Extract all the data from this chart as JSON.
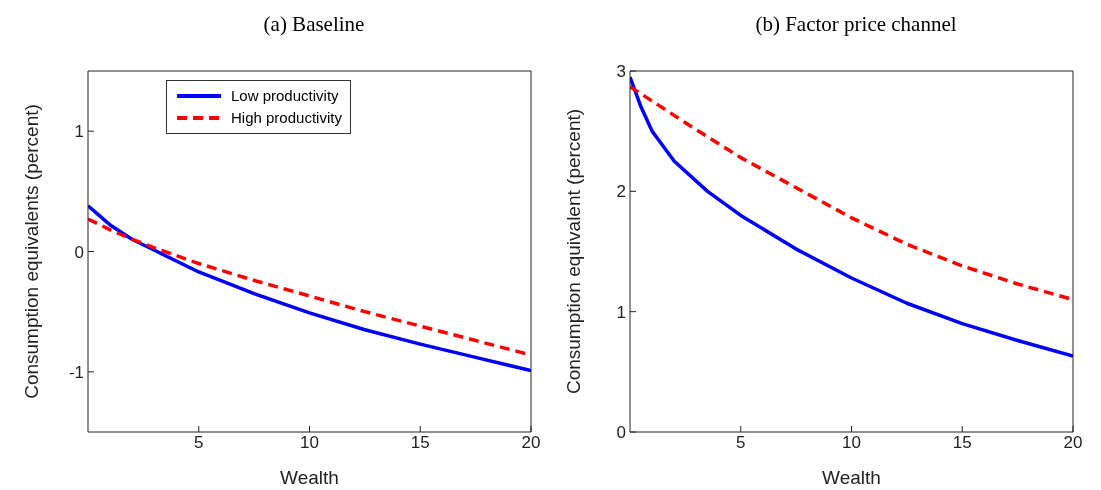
{
  "chart_data": [
    {
      "type": "line",
      "title": "(a) Baseline",
      "xlabel": "Wealth",
      "ylabel": "Consumption equivalents (percent)",
      "xlim": [
        0,
        20
      ],
      "xticks": [
        5,
        10,
        15,
        20
      ],
      "ylim": [
        -1.5,
        1.5
      ],
      "yticks": [
        -1,
        0,
        1
      ],
      "legend": "top",
      "marker": "none",
      "series": [
        {
          "name": "Low productivity",
          "color": "#0000ff",
          "line_style": "solid",
          "x": [
            0,
            0.5,
            1,
            2,
            3,
            5,
            7.5,
            10,
            12.5,
            15,
            17.5,
            20
          ],
          "values": [
            0.38,
            0.3,
            0.22,
            0.1,
            0.01,
            -0.17,
            -0.35,
            -0.51,
            -0.65,
            -0.77,
            -0.88,
            -0.99
          ]
        },
        {
          "name": "High productivity",
          "color": "#ff0000",
          "line_style": "dashed",
          "x": [
            0,
            1,
            2,
            3,
            5,
            7.5,
            10,
            12.5,
            15,
            17.5,
            20
          ],
          "values": [
            0.27,
            0.18,
            0.1,
            0.03,
            -0.1,
            -0.24,
            -0.37,
            -0.5,
            -0.62,
            -0.74,
            -0.86
          ]
        }
      ]
    },
    {
      "type": "line",
      "title": "(b) Factor price channel",
      "xlabel": "Wealth",
      "ylabel": "Consumption equivalent (percent)",
      "xlim": [
        0,
        20
      ],
      "xticks": [
        5,
        10,
        15,
        20
      ],
      "ylim": [
        0,
        3
      ],
      "yticks": [
        0,
        1,
        2,
        3
      ],
      "marker": "none",
      "series": [
        {
          "color": "#0000ff",
          "line_style": "solid",
          "x": [
            0,
            0.5,
            1,
            2,
            3.5,
            5,
            7.5,
            10,
            12.5,
            15,
            17.5,
            20
          ],
          "values": [
            2.95,
            2.7,
            2.5,
            2.25,
            2.0,
            1.8,
            1.52,
            1.28,
            1.07,
            0.9,
            0.76,
            0.63
          ]
        },
        {
          "color": "#ff0000",
          "line_style": "dashed",
          "x": [
            0,
            2.5,
            5,
            7.5,
            10,
            12.5,
            15,
            17.5,
            20
          ],
          "values": [
            2.87,
            2.57,
            2.28,
            2.03,
            1.78,
            1.56,
            1.38,
            1.23,
            1.1
          ]
        }
      ]
    }
  ]
}
